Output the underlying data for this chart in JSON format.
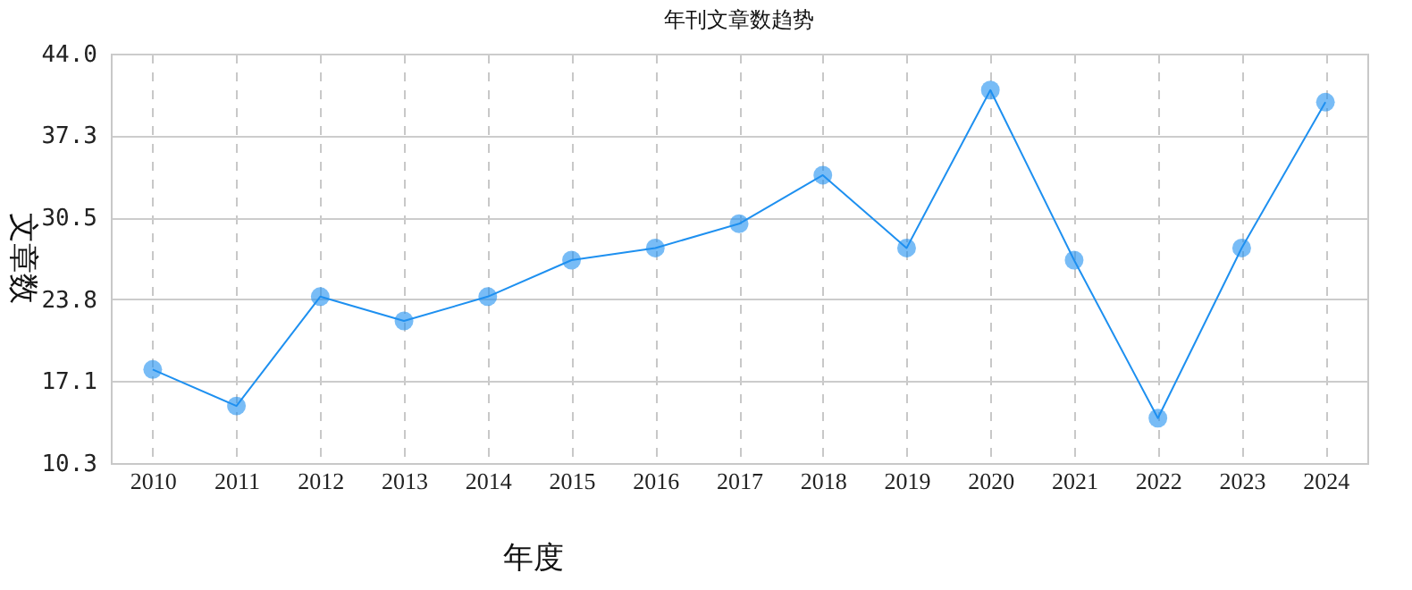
{
  "chart_data": {
    "type": "line",
    "title": "年刊文章数趋势",
    "xlabel": "年度",
    "ylabel": "文章数",
    "categories": [
      "2010",
      "2011",
      "2012",
      "2013",
      "2014",
      "2015",
      "2016",
      "2017",
      "2018",
      "2019",
      "2020",
      "2021",
      "2022",
      "2023",
      "2024"
    ],
    "series": [
      {
        "color": "#1e90f0",
        "values": [
          18,
          15,
          24,
          22,
          24,
          27,
          28,
          30,
          34,
          28,
          41,
          27,
          14,
          28,
          40
        ]
      }
    ],
    "ylim": [
      10.3,
      44.0
    ],
    "yticks": [
      {
        "value": 10.3,
        "label": "10.3"
      },
      {
        "value": 17.1,
        "label": "17.1"
      },
      {
        "value": 23.8,
        "label": "23.8"
      },
      {
        "value": 30.5,
        "label": "30.5"
      },
      {
        "value": 37.3,
        "label": "37.3"
      },
      {
        "value": 44.0,
        "label": "44.0"
      }
    ],
    "grid": true,
    "marker": "circle",
    "line_style": "solid"
  }
}
